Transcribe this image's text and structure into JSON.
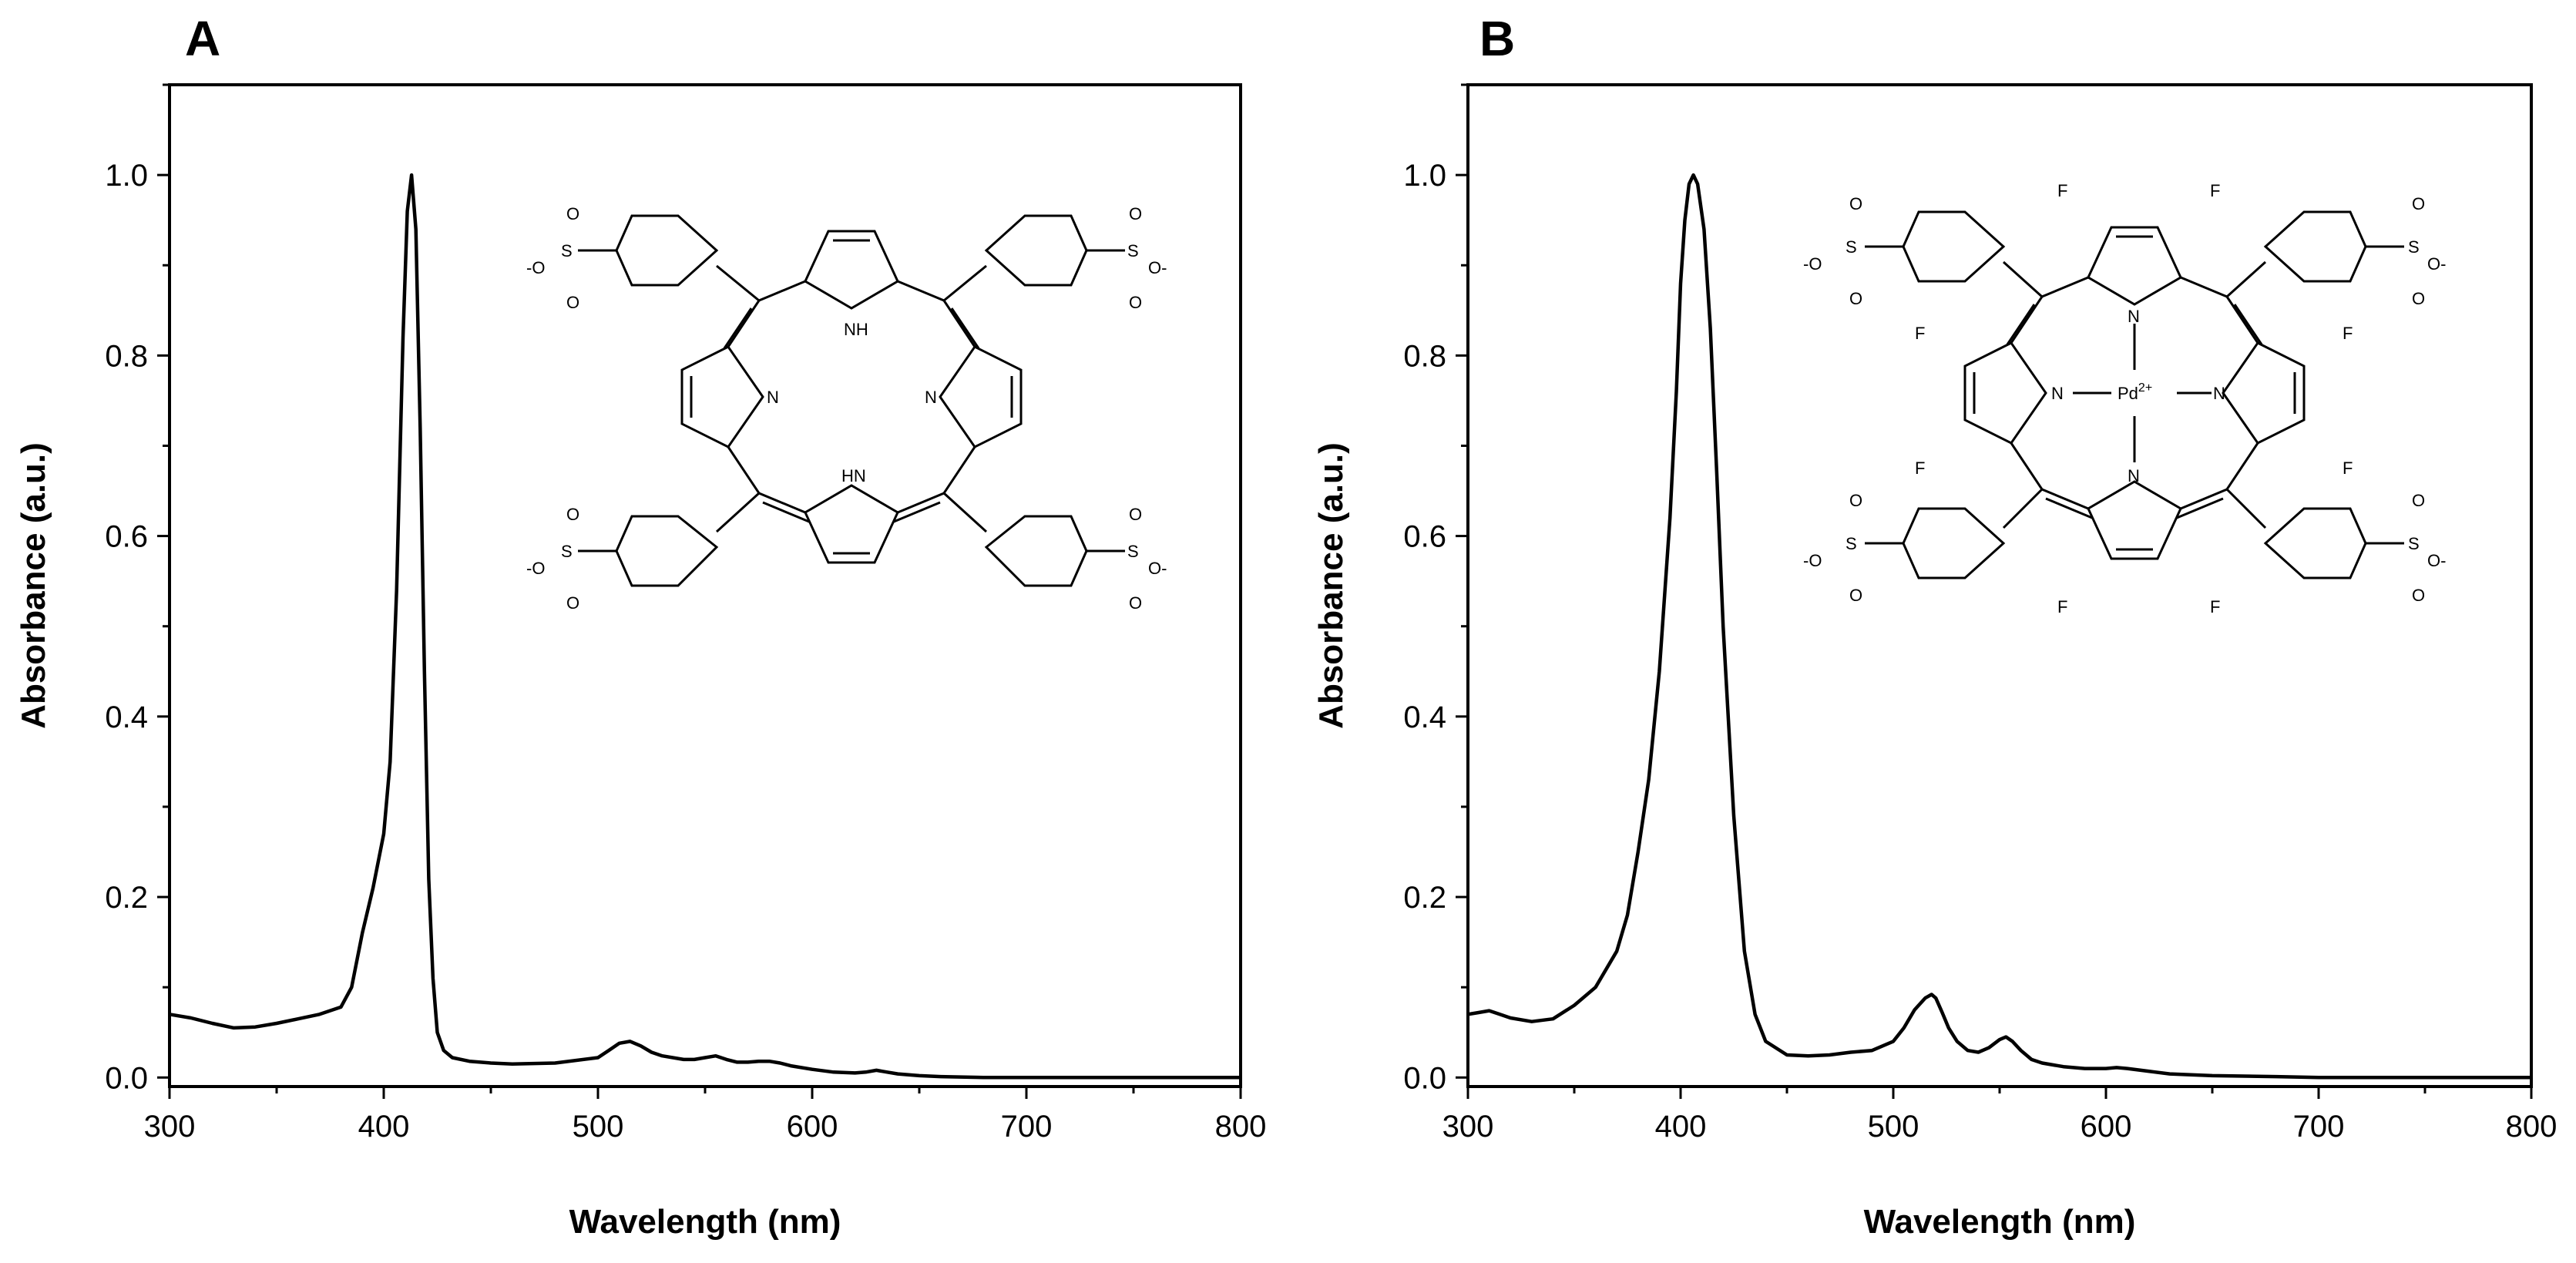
{
  "figure": {
    "panels": [
      "A",
      "B"
    ]
  },
  "chart_data": [
    {
      "type": "line",
      "panel_label": "A",
      "xlabel": "Wavelength (nm)",
      "ylabel": "Absorbance (a.u.)",
      "xlim": [
        300,
        800
      ],
      "ylim": [
        -0.01,
        1.1
      ],
      "xticks": [
        300,
        400,
        500,
        600,
        700,
        800
      ],
      "yticks": [
        0.0,
        0.2,
        0.4,
        0.6,
        0.8,
        1.0
      ],
      "ytick_labels": [
        "0.0",
        "0.2",
        "0.4",
        "0.6",
        "0.8",
        "1.0"
      ],
      "grid": false,
      "legend": "none",
      "series": [
        {
          "x": [
            300,
            310,
            320,
            330,
            340,
            350,
            360,
            370,
            380,
            385,
            390,
            395,
            400,
            403,
            406,
            409,
            411,
            413,
            415,
            417,
            419,
            421,
            423,
            425,
            428,
            432,
            440,
            450,
            460,
            480,
            500,
            505,
            510,
            515,
            520,
            525,
            530,
            540,
            545,
            550,
            555,
            560,
            565,
            570,
            575,
            580,
            585,
            590,
            600,
            610,
            620,
            625,
            630,
            635,
            640,
            650,
            660,
            680,
            700,
            750,
            800
          ],
          "y": [
            0.07,
            0.066,
            0.06,
            0.055,
            0.056,
            0.06,
            0.065,
            0.07,
            0.078,
            0.1,
            0.16,
            0.21,
            0.27,
            0.35,
            0.54,
            0.82,
            0.96,
            1.0,
            0.94,
            0.72,
            0.45,
            0.22,
            0.11,
            0.05,
            0.03,
            0.022,
            0.018,
            0.016,
            0.015,
            0.016,
            0.022,
            0.03,
            0.038,
            0.04,
            0.035,
            0.028,
            0.024,
            0.02,
            0.02,
            0.022,
            0.024,
            0.02,
            0.017,
            0.017,
            0.018,
            0.018,
            0.016,
            0.013,
            0.009,
            0.006,
            0.005,
            0.006,
            0.008,
            0.006,
            0.004,
            0.002,
            0.001,
            0.0,
            0.0,
            0.0,
            0.0
          ]
        }
      ],
      "molecule_atoms": {
        "n": "N",
        "nh": "NH",
        "hn": "HN",
        "o": "O",
        "o_minus": "-O",
        "o_minus_right": "O-",
        "s": "S"
      }
    },
    {
      "type": "line",
      "panel_label": "B",
      "xlabel": "Wavelength (nm)",
      "ylabel": "Absorbance (a.u.)",
      "xlim": [
        300,
        800
      ],
      "ylim": [
        -0.01,
        1.1
      ],
      "xticks": [
        300,
        400,
        500,
        600,
        700,
        800
      ],
      "yticks": [
        0.0,
        0.2,
        0.4,
        0.6,
        0.8,
        1.0
      ],
      "ytick_labels": [
        "0.0",
        "0.2",
        "0.4",
        "0.6",
        "0.8",
        "1.0"
      ],
      "grid": false,
      "legend": "none",
      "series": [
        {
          "x": [
            300,
            305,
            310,
            315,
            320,
            330,
            340,
            350,
            360,
            370,
            375,
            380,
            385,
            390,
            395,
            398,
            400,
            402,
            404,
            406,
            408,
            411,
            414,
            417,
            420,
            425,
            430,
            435,
            440,
            450,
            460,
            470,
            480,
            490,
            500,
            505,
            510,
            515,
            518,
            520,
            523,
            526,
            530,
            535,
            540,
            545,
            550,
            553,
            556,
            560,
            565,
            570,
            580,
            590,
            600,
            605,
            610,
            620,
            630,
            650,
            680,
            700,
            750,
            800
          ],
          "y": [
            0.07,
            0.072,
            0.074,
            0.07,
            0.066,
            0.062,
            0.065,
            0.08,
            0.1,
            0.14,
            0.18,
            0.25,
            0.33,
            0.45,
            0.62,
            0.76,
            0.88,
            0.95,
            0.99,
            1.0,
            0.99,
            0.94,
            0.83,
            0.67,
            0.5,
            0.29,
            0.14,
            0.07,
            0.04,
            0.025,
            0.024,
            0.025,
            0.028,
            0.03,
            0.04,
            0.055,
            0.075,
            0.088,
            0.092,
            0.088,
            0.072,
            0.055,
            0.04,
            0.03,
            0.028,
            0.033,
            0.042,
            0.045,
            0.04,
            0.03,
            0.02,
            0.016,
            0.012,
            0.01,
            0.01,
            0.011,
            0.01,
            0.007,
            0.004,
            0.002,
            0.001,
            0.0,
            0.0,
            0.0
          ]
        }
      ],
      "molecule_atoms": {
        "n": "N",
        "pd": "Pd",
        "pd_charge": "2+",
        "f": "F",
        "o": "O",
        "o_minus": "-O",
        "o_minus_right": "O-",
        "s": "S"
      }
    }
  ]
}
